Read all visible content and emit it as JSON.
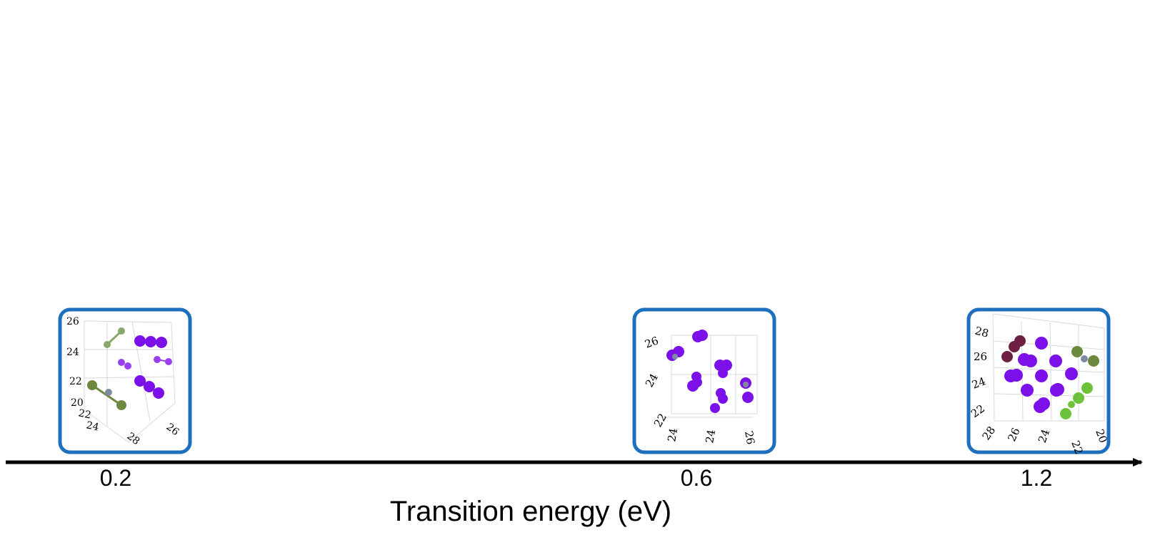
{
  "chart_data": {
    "type": "timeline",
    "axis_label": "Transition energy (eV)",
    "marks": [
      {
        "value": "0.2",
        "vertical_ticks": [
          "26",
          "24",
          "22",
          "20"
        ],
        "floor_ticks": [
          "22",
          "24",
          "28",
          "26"
        ]
      },
      {
        "value": "0.6",
        "vertical_ticks": [
          "26",
          "24"
        ],
        "floor_ticks": [
          "22",
          "24",
          "26"
        ]
      },
      {
        "value": "1.2",
        "vertical_ticks": [
          "28",
          "26",
          "24",
          "22"
        ],
        "floor_ticks": [
          "28",
          "26",
          "24",
          "22",
          "20"
        ]
      }
    ]
  },
  "colors": {
    "frame": "#1f6fbf",
    "axis": "#000000",
    "violet": "#7b10e8",
    "violet_light": "#9a40f0",
    "olive": "#6d8840",
    "sage": "#8aa86a",
    "lime": "#6cc23a",
    "maroon": "#6d1f44",
    "grey": "#7f8aa0",
    "grid": "#d9d9d9"
  }
}
